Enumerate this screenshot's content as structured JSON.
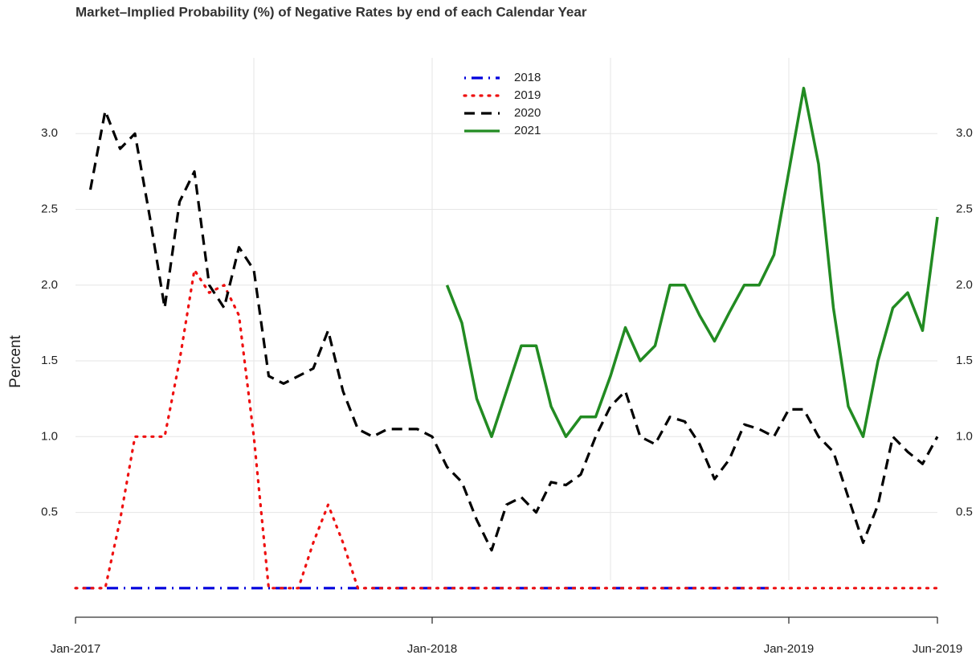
{
  "chart_data": {
    "type": "line",
    "title": "Market–Implied Probability (%) of Negative Rates by end of each Calendar Year",
    "ylabel": "Percent",
    "categories": [
      "Jan-2017",
      null,
      null,
      null,
      null,
      null,
      null,
      null,
      null,
      null,
      null,
      null,
      null,
      null,
      null,
      null,
      null,
      null,
      null,
      null,
      null,
      null,
      null,
      null,
      "Jan-2018",
      null,
      null,
      null,
      null,
      null,
      null,
      null,
      null,
      null,
      null,
      null,
      null,
      null,
      null,
      null,
      null,
      null,
      null,
      null,
      null,
      null,
      null,
      null,
      "Jan-2019",
      null,
      null,
      null,
      null,
      null,
      null,
      null,
      null,
      null,
      "Jun-2019"
    ],
    "series": [
      {
        "name": "2018",
        "color": "#0000dd",
        "style": "dotdash",
        "values": [
          0,
          0,
          0,
          0,
          0,
          0,
          0,
          0,
          0,
          0,
          0,
          0,
          0,
          0,
          0,
          0,
          0,
          0,
          0,
          0,
          0,
          0,
          0,
          0,
          0,
          0,
          0,
          0,
          0,
          0,
          0,
          0,
          0,
          0,
          0,
          0,
          0,
          0,
          0,
          0,
          0,
          0,
          0,
          0,
          0,
          0,
          0,
          0,
          null,
          null,
          null,
          null,
          null,
          null,
          null,
          null,
          null,
          null,
          null
        ]
      },
      {
        "name": "2019",
        "color": "#ee1111",
        "style": "dotted",
        "values": [
          0,
          0,
          0,
          0.45,
          1.0,
          1.0,
          1.0,
          1.5,
          2.1,
          1.95,
          2.0,
          1.8,
          1.0,
          0,
          0,
          0,
          0.3,
          0.55,
          0.3,
          0,
          0,
          0,
          0,
          0,
          0,
          0,
          0,
          0,
          0,
          0,
          0,
          0,
          0,
          0,
          0,
          0,
          0,
          0,
          0,
          0,
          0,
          0,
          0,
          0,
          0,
          0,
          0,
          0,
          0,
          0,
          0,
          0,
          0,
          0,
          0,
          0,
          0,
          0,
          0
        ]
      },
      {
        "name": "2020",
        "color": "#000000",
        "style": "dashed",
        "values": [
          null,
          2.63,
          3.15,
          2.9,
          3.0,
          2.45,
          1.85,
          2.55,
          2.75,
          2.0,
          1.85,
          2.25,
          2.1,
          1.4,
          1.35,
          1.4,
          1.45,
          1.7,
          1.3,
          1.05,
          1.0,
          1.05,
          1.05,
          1.05,
          1.0,
          0.8,
          0.7,
          0.45,
          0.25,
          0.55,
          0.6,
          0.5,
          0.7,
          0.68,
          0.75,
          1.0,
          1.2,
          1.3,
          1.0,
          0.95,
          1.13,
          1.1,
          0.95,
          0.72,
          0.85,
          1.08,
          1.05,
          1.0,
          1.18,
          1.18,
          1.0,
          0.9,
          0.6,
          0.3,
          0.55,
          1.0,
          0.9,
          0.82,
          1.0
        ]
      },
      {
        "name": "2021",
        "color": "#228b22",
        "style": "solid",
        "values": [
          null,
          null,
          null,
          null,
          null,
          null,
          null,
          null,
          null,
          null,
          null,
          null,
          null,
          null,
          null,
          null,
          null,
          null,
          null,
          null,
          null,
          null,
          null,
          null,
          null,
          2.0,
          1.75,
          1.25,
          1.0,
          1.3,
          1.6,
          1.6,
          1.2,
          1.0,
          1.13,
          1.13,
          1.4,
          1.72,
          1.5,
          1.6,
          2.0,
          2.0,
          1.8,
          1.63,
          1.82,
          2.0,
          2.0,
          2.2,
          2.75,
          3.3,
          2.8,
          1.85,
          1.2,
          1.0,
          1.5,
          1.85,
          1.95,
          1.7,
          2.45
        ]
      }
    ],
    "ylim": [
      -0.16,
      3.5
    ],
    "yticks": [
      0.5,
      {
        "value": 1,
        "label": "1.0"
      },
      1.5,
      {
        "value": 2,
        "label": "2.0"
      },
      2.5,
      {
        "value": 3,
        "label": "3.0"
      }
    ],
    "grid": true,
    "legend": "top"
  }
}
